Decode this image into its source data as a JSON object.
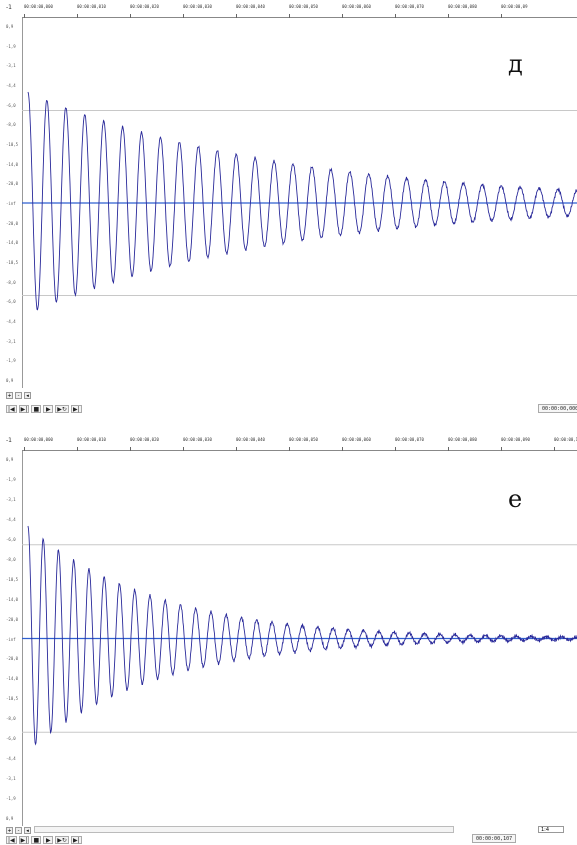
{
  "panels": [
    {
      "letter": "д",
      "timeline_labels": [
        "00:00:00,000",
        "00:00:00,010",
        "00:00:00,020",
        "00:00:00,030",
        "00:00:00,040",
        "00:00:00,050",
        "00:00:00,060",
        "00:00:00,070",
        "00:00:00,080",
        "00:00:00,09"
      ],
      "db_labels": [
        "0,9",
        "-1,9",
        "-3,1",
        "-4,4",
        "-6,0",
        "-8,0",
        "-10,5",
        "-14,0",
        "-20,0",
        "-inf",
        "-20,0",
        "-14,0",
        "-10,5",
        "-8,0",
        "-6,0",
        "-4,4",
        "-3,1",
        "-1,9",
        "0,9"
      ],
      "corner_label": "-1",
      "transport_buttons": [
        "|◀",
        "▶|",
        "■",
        "▶",
        "▶↻",
        "▶|"
      ],
      "time_readout": "00:00:00,000",
      "decay": 0.075,
      "cycles": 29
    },
    {
      "letter": "е",
      "timeline_labels": [
        "00:00:00,000",
        "00:00:00,010",
        "00:00:00,020",
        "00:00:00,030",
        "00:00:00,040",
        "00:00:00,050",
        "00:00:00,060",
        "00:00:00,070",
        "00:00:00,080",
        "00:00:00,090",
        "00:00:00,1"
      ],
      "db_labels": [
        "0,9",
        "-1,9",
        "-3,1",
        "-4,4",
        "-6,0",
        "-8,0",
        "-10,5",
        "-14,0",
        "-20,0",
        "-inf",
        "-20,0",
        "-14,0",
        "-10,5",
        "-8,0",
        "-6,0",
        "-4,4",
        "-3,1",
        "-1,9",
        "0,9"
      ],
      "corner_label": "-1",
      "transport_buttons": [
        "|◀",
        "▶|",
        "■",
        "▶",
        "▶↻",
        "▶|"
      ],
      "time_readout": "00:00:00,107",
      "zoom_value": "1:4",
      "decay": 0.12,
      "cycles": 36
    }
  ],
  "colors": {
    "wave": "#2a2a9a",
    "center_line": "#2f5fd0",
    "grid_line": "#c8c8c8",
    "background": "#ffffff"
  }
}
